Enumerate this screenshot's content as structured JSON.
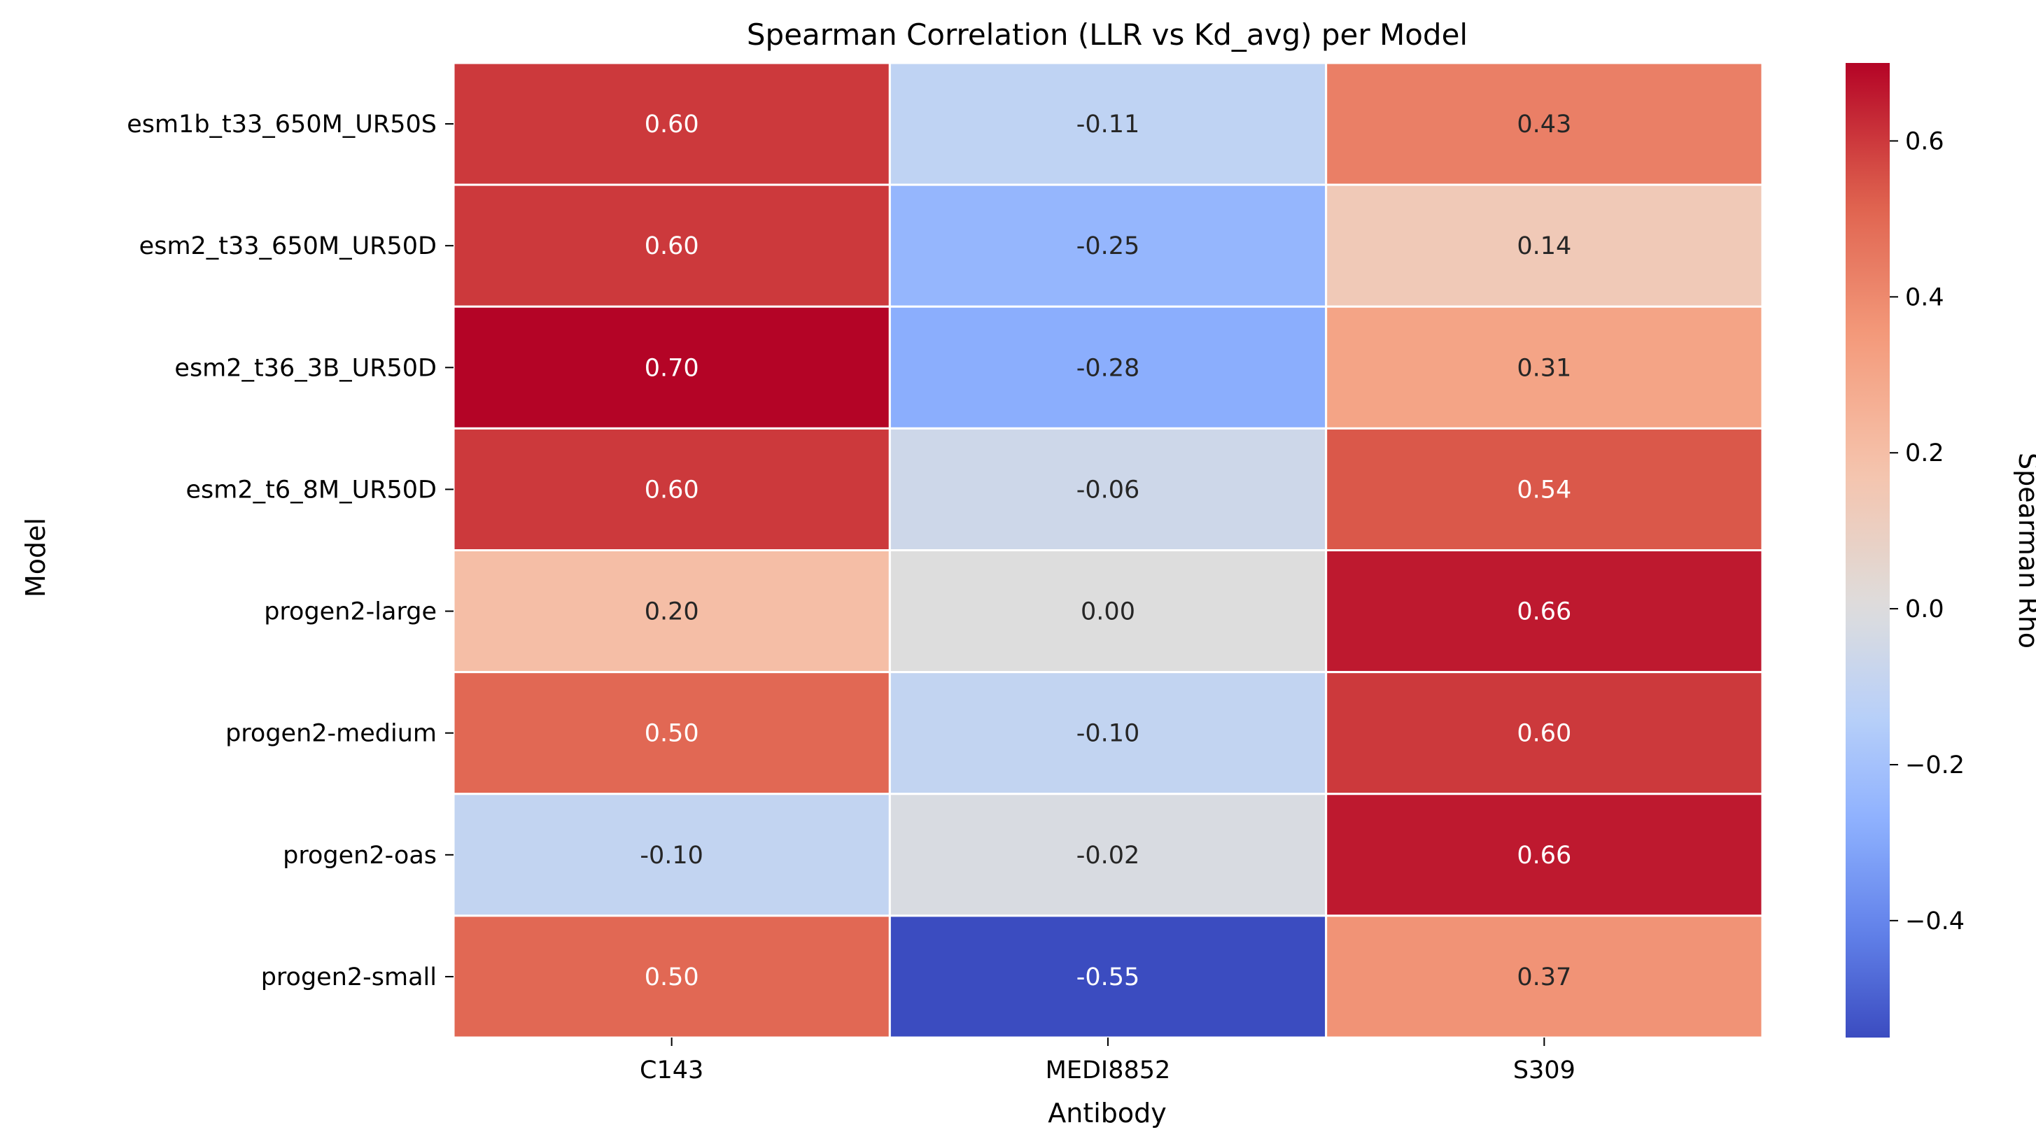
{
  "chart_data": {
    "type": "heatmap",
    "title": "Spearman Correlation (LLR vs Kd_avg) per Model",
    "xlabel": "Antibody",
    "ylabel": "Model",
    "x_categories": [
      "C143",
      "MEDI8852",
      "S309"
    ],
    "y_categories": [
      "esm1b_t33_650M_UR50S",
      "esm2_t33_650M_UR50D",
      "esm2_t36_3B_UR50D",
      "esm2_t6_8M_UR50D",
      "progen2-large",
      "progen2-medium",
      "progen2-oas",
      "progen2-small"
    ],
    "values": [
      [
        0.6,
        -0.11,
        0.43
      ],
      [
        0.6,
        -0.25,
        0.14
      ],
      [
        0.7,
        -0.28,
        0.31
      ],
      [
        0.6,
        -0.06,
        0.54
      ],
      [
        0.2,
        0.0,
        0.66
      ],
      [
        0.5,
        -0.1,
        0.6
      ],
      [
        -0.1,
        -0.02,
        0.66
      ],
      [
        0.5,
        -0.55,
        0.37
      ]
    ],
    "cell_labels": [
      [
        "0.60",
        "-0.11",
        "0.43"
      ],
      [
        "0.60",
        "-0.25",
        "0.14"
      ],
      [
        "0.70",
        "-0.28",
        "0.31"
      ],
      [
        "0.60",
        "-0.06",
        "0.54"
      ],
      [
        "0.20",
        "0.00",
        "0.66"
      ],
      [
        "0.50",
        "-0.10",
        "0.60"
      ],
      [
        "-0.10",
        "-0.02",
        "0.66"
      ],
      [
        "0.50",
        "-0.55",
        "0.37"
      ]
    ],
    "colormap": "coolwarm",
    "colorbar": {
      "label": "Spearman Rho",
      "range": [
        -0.55,
        0.7
      ],
      "ticks": [
        -0.4,
        -0.2,
        0.0,
        0.2,
        0.4,
        0.6
      ],
      "tick_labels": [
        "−0.4",
        "−0.2",
        "0.0",
        "0.2",
        "0.4",
        "0.6"
      ]
    },
    "grid": false,
    "cell_border_color": "#ffffff"
  }
}
